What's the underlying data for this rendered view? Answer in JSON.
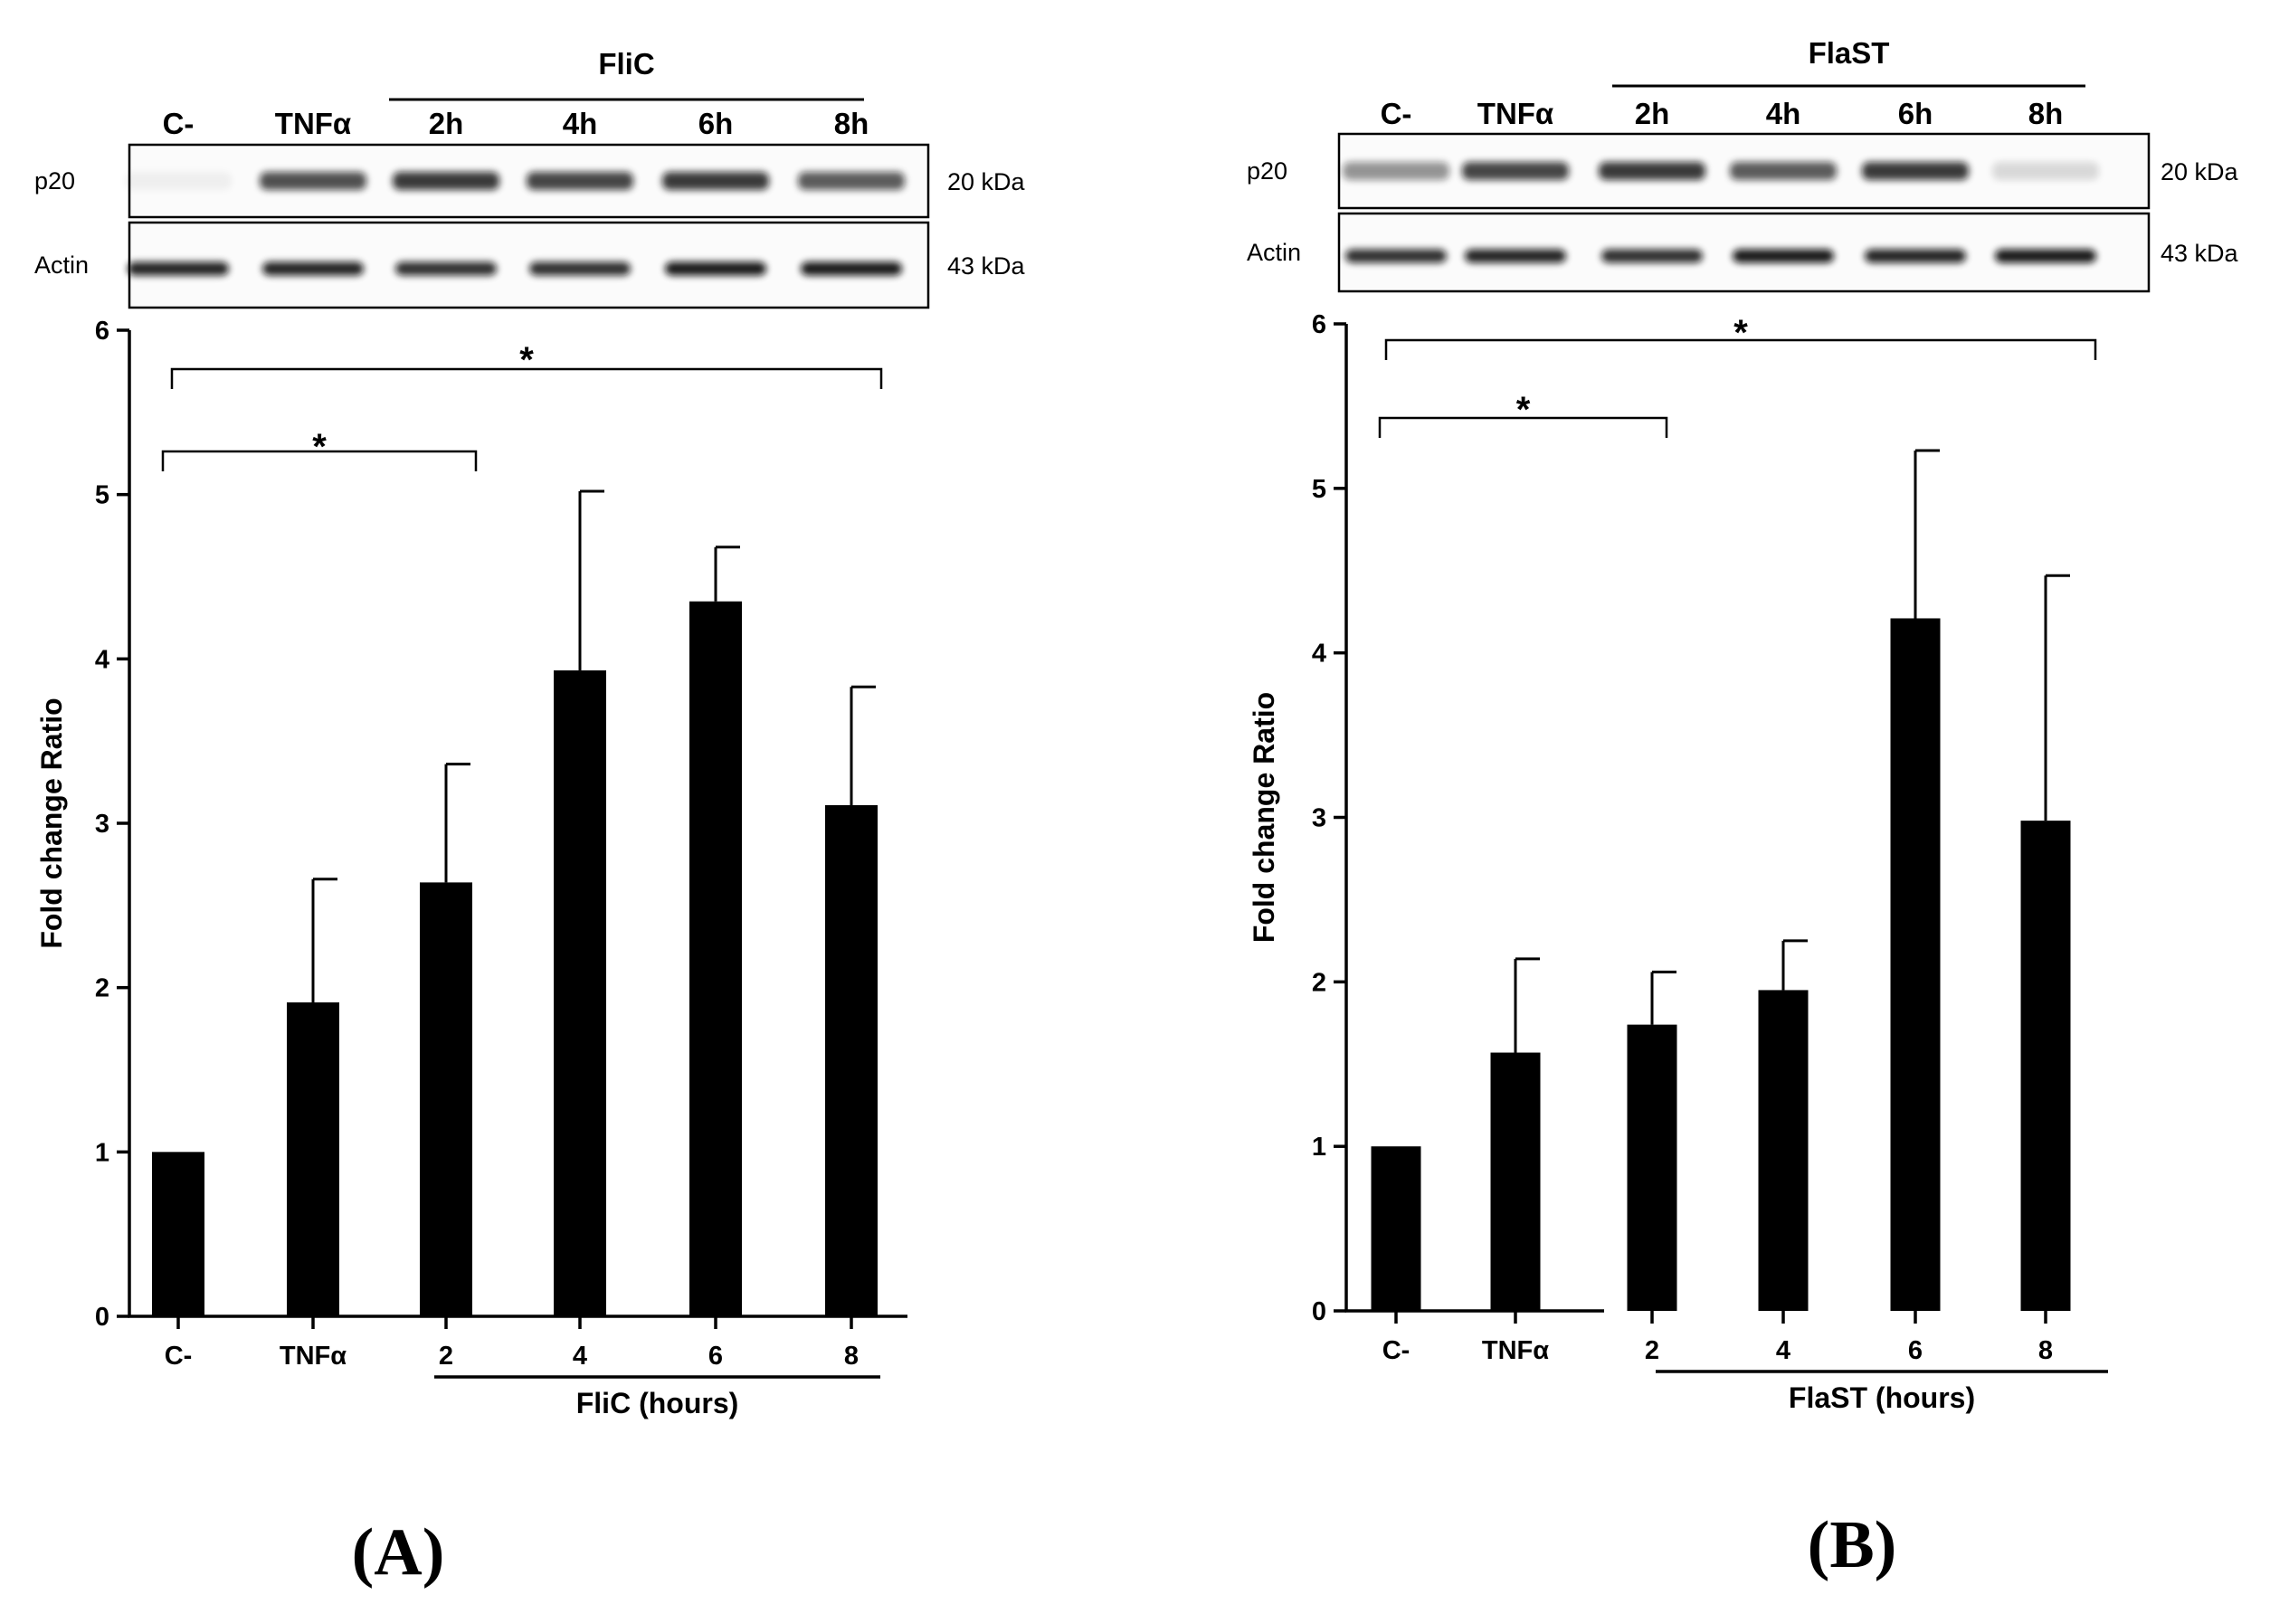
{
  "figure": {
    "panels": [
      {
        "panel_label": "(A)",
        "western_blot": {
          "treatment": "FliC",
          "lanes": [
            "C-",
            "TNFα",
            "2h",
            "4h",
            "6h",
            "8h"
          ],
          "rows": [
            {
              "protein": "p20",
              "size": "20 kDa",
              "band_intensity": [
                0.05,
                0.75,
                0.85,
                0.8,
                0.85,
                0.7
              ]
            },
            {
              "protein": "Actin",
              "size": "43 kDa",
              "band_intensity": [
                0.95,
                0.95,
                0.9,
                0.9,
                1.0,
                1.0
              ]
            }
          ]
        },
        "significance": [
          {
            "label": "*",
            "from": "C-",
            "to": "2"
          },
          {
            "label": "*",
            "from": "C-",
            "to": "8"
          }
        ]
      },
      {
        "panel_label": "(B)",
        "western_blot": {
          "treatment": "FlaST",
          "lanes": [
            "C-",
            "TNFα",
            "2h",
            "4h",
            "6h",
            "8h"
          ],
          "rows": [
            {
              "protein": "p20",
              "size": "20 kDa",
              "band_intensity": [
                0.45,
                0.8,
                0.85,
                0.7,
                0.85,
                0.15
              ]
            },
            {
              "protein": "Actin",
              "size": "43 kDa",
              "band_intensity": [
                0.9,
                0.95,
                0.9,
                1.0,
                0.95,
                1.0
              ]
            }
          ]
        },
        "significance": [
          {
            "label": "*",
            "from": "C-",
            "to": "2"
          },
          {
            "label": "*",
            "from": "C-",
            "to": "8"
          }
        ]
      }
    ]
  },
  "chart_data": [
    {
      "type": "bar",
      "title": "",
      "categories": [
        "C-",
        "TNFα",
        "2",
        "4",
        "6",
        "8"
      ],
      "values": [
        1.0,
        1.91,
        2.64,
        3.93,
        4.35,
        3.11
      ],
      "error_upper": [
        0.0,
        0.75,
        0.72,
        1.09,
        0.33,
        0.72
      ],
      "ylabel": "Fold change Ratio",
      "xlabel": "FliC (hours)",
      "ylim": [
        0,
        6
      ],
      "yticks": [
        0,
        1,
        2,
        3,
        4,
        5,
        6
      ],
      "grid": false
    },
    {
      "type": "bar",
      "title": "",
      "categories": [
        "C-",
        "TNFα",
        "2",
        "4",
        "6",
        "8"
      ],
      "values": [
        1.0,
        1.57,
        1.74,
        1.95,
        4.21,
        2.98
      ],
      "error_upper": [
        0.0,
        0.57,
        0.32,
        0.3,
        1.02,
        1.49
      ],
      "ylabel": "Fold change Ratio",
      "xlabel": "FlaST (hours)",
      "ylim": [
        0,
        6
      ],
      "yticks": [
        0,
        1,
        2,
        3,
        4,
        5,
        6
      ],
      "grid": false
    }
  ]
}
